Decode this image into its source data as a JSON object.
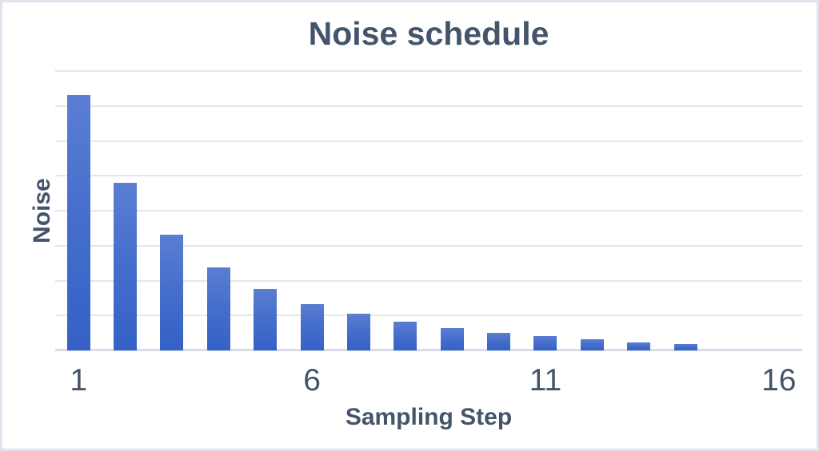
{
  "chart_data": {
    "type": "bar",
    "title": "Noise schedule",
    "xlabel": "Sampling Step",
    "ylabel": "Noise",
    "categories": [
      1,
      2,
      3,
      4,
      5,
      6,
      7,
      8,
      9,
      10,
      11,
      12,
      13,
      14,
      15,
      16
    ],
    "values": [
      7.31,
      4.81,
      3.32,
      2.37,
      1.75,
      1.33,
      1.05,
      0.82,
      0.65,
      0.51,
      0.42,
      0.33,
      0.24,
      0.18,
      0,
      0
    ],
    "x_tick_labels": [
      "1",
      "6",
      "11",
      "16"
    ],
    "x_tick_categories": [
      1,
      6,
      11,
      16
    ],
    "ylim": [
      0,
      8
    ],
    "gridline_step": 1,
    "grid": "horizontal-only",
    "legend": "none",
    "colors": {
      "bar_gradient_top": "#5b7ed3",
      "bar_gradient_bottom": "#3561c6",
      "text": "#44546a",
      "gridline": "#e3e7ef",
      "axis_line": "#d7deea",
      "frame_border": "#dfe4ef",
      "background": "#ffffff"
    }
  }
}
